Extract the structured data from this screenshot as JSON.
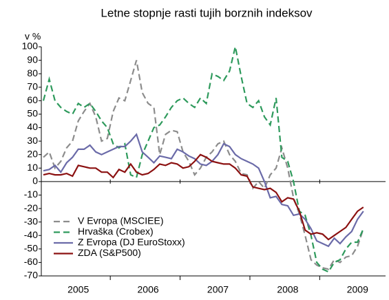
{
  "chart_data": {
    "type": "line",
    "title": "Letne stopnje rasti tujih borznih indeksov",
    "ylabel": "v %",
    "categories": [
      null,
      null,
      null,
      null,
      null,
      null,
      "2005",
      null,
      null,
      null,
      null,
      null,
      null,
      null,
      null,
      null,
      null,
      null,
      "2006",
      null,
      null,
      null,
      null,
      null,
      null,
      null,
      null,
      null,
      null,
      null,
      "2007",
      null,
      null,
      null,
      null,
      null,
      null,
      null,
      null,
      null,
      null,
      null,
      "2008",
      null,
      null,
      null,
      null,
      null,
      null,
      null,
      null,
      null,
      null,
      null,
      "2009",
      null
    ],
    "ylim": [
      -70,
      100
    ],
    "yticks": [
      -70,
      -60,
      -50,
      -40,
      -30,
      -20,
      -10,
      0,
      10,
      20,
      30,
      40,
      50,
      60,
      70,
      80,
      90,
      100
    ],
    "grid": false,
    "legend": "lower left",
    "series": [
      {
        "name": "V Evropa (MSCIEE)",
        "color": "#8c8c8c",
        "dash": "dashed",
        "values": [
          18,
          22,
          10,
          15,
          25,
          30,
          45,
          52,
          58,
          48,
          30,
          32,
          52,
          62,
          60,
          75,
          90,
          66,
          58,
          55,
          20,
          35,
          38,
          37,
          22,
          15,
          5,
          10,
          18,
          22,
          28,
          30,
          20,
          15,
          6,
          5,
          -5,
          0,
          -5,
          5,
          10,
          25,
          10,
          -12,
          -24,
          -40,
          -58,
          -62,
          -64,
          -65,
          -58,
          -60,
          -56,
          -55,
          -48,
          -35
        ]
      },
      {
        "name": "Hrvaška (Crobex)",
        "color": "#2e9a5c",
        "dash": "dashed",
        "values": [
          60,
          76,
          60,
          55,
          52,
          50,
          58,
          55,
          58,
          52,
          45,
          40,
          28,
          25,
          28,
          5,
          3,
          20,
          30,
          40,
          42,
          48,
          55,
          60,
          62,
          58,
          55,
          62,
          58,
          80,
          78,
          75,
          82,
          100,
          78,
          58,
          55,
          60,
          48,
          42,
          62,
          18,
          15,
          0,
          -22,
          -25,
          -40,
          -60,
          -65,
          -67,
          -60,
          -58,
          -50,
          -45,
          -45,
          -35
        ]
      },
      {
        "name": "Z Evropa (DJ EuroStoxx)",
        "color": "#6a6aa8",
        "dash": "solid",
        "values": [
          8,
          9,
          12,
          7,
          14,
          18,
          24,
          24,
          27,
          22,
          20,
          22,
          24,
          26,
          26,
          30,
          35,
          22,
          18,
          14,
          19,
          18,
          17,
          24,
          22,
          19,
          17,
          13,
          12,
          15,
          20,
          28,
          26,
          20,
          17,
          15,
          13,
          10,
          0,
          -12,
          -11,
          -17,
          -18,
          -25,
          -24,
          -28,
          -35,
          -44,
          -46,
          -48,
          -42,
          -46,
          -41,
          -37,
          -28,
          -22
        ]
      },
      {
        "name": "ZDA (S&P500)",
        "color": "#8b1010",
        "dash": "solid",
        "values": [
          5,
          6,
          5,
          5,
          6,
          4,
          12,
          11,
          10,
          10,
          7,
          7,
          3,
          9,
          7,
          13,
          7,
          5,
          6,
          9,
          13,
          12,
          14,
          13,
          10,
          11,
          15,
          20,
          18,
          15,
          14,
          13,
          13,
          10,
          5,
          4,
          -4,
          -5,
          -6,
          -5,
          -8,
          -15,
          -12,
          -13,
          -22,
          -36,
          -39,
          -38,
          -39,
          -43,
          -40,
          -37,
          -34,
          -28,
          -22,
          -19
        ]
      }
    ]
  }
}
